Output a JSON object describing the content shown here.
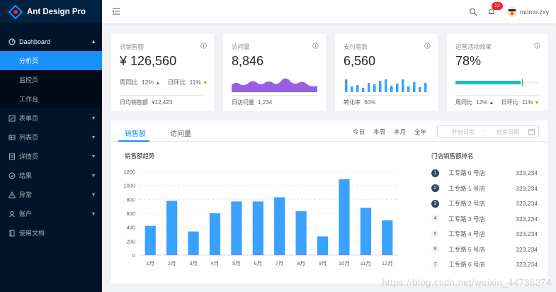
{
  "app": {
    "title": "Ant Design Pro"
  },
  "sidebar": {
    "items": [
      {
        "label": "Dashboard",
        "icon": "dashboard-icon",
        "open": true,
        "children": [
          {
            "label": "分析页",
            "selected": true
          },
          {
            "label": "监控页"
          },
          {
            "label": "工作台"
          }
        ]
      },
      {
        "label": "表单页",
        "icon": "form-icon"
      },
      {
        "label": "列表页",
        "icon": "table-icon"
      },
      {
        "label": "详情页",
        "icon": "profile-icon"
      },
      {
        "label": "结果",
        "icon": "check-circle-icon"
      },
      {
        "label": "异常",
        "icon": "warning-icon"
      },
      {
        "label": "账户",
        "icon": "user-icon"
      },
      {
        "label": "使用文档",
        "icon": "book-icon"
      }
    ]
  },
  "header": {
    "notice_count": "12",
    "user_name": "momo.zxy"
  },
  "stats": [
    {
      "label": "总销售额",
      "value": "¥ 126,560",
      "wow_label": "周同比",
      "wow": "12%",
      "dod_label": "日环比",
      "dod": "11%",
      "footer_label": "日均销售额",
      "footer_value": "¥12,423"
    },
    {
      "label": "访问量",
      "value": "8,846",
      "footer_label": "日访问量",
      "footer_value": "1,234"
    },
    {
      "label": "支付笔数",
      "value": "6,560",
      "footer_label": "转化率",
      "footer_value": "60%"
    },
    {
      "label": "运营活动效果",
      "value": "78%",
      "progress": 0.78,
      "wow_label": "周同比",
      "wow": "12%",
      "dod_label": "日环比",
      "dod": "11%"
    }
  ],
  "sales_panel": {
    "tabs": [
      "销售额",
      "访问量"
    ],
    "ranges": [
      "今日",
      "本周",
      "本月",
      "全年"
    ],
    "start_placeholder": "开始日期",
    "end_placeholder": "结束日期",
    "sep": "~",
    "ranking_title": "门店销售额排名",
    "ranking": [
      {
        "rank": "1",
        "name": "工专路 0 号店",
        "amount": "323,234"
      },
      {
        "rank": "2",
        "name": "工专路 1 号店",
        "amount": "323,234"
      },
      {
        "rank": "3",
        "name": "工专路 2 号店",
        "amount": "323,234"
      },
      {
        "rank": "4",
        "name": "工专路 3 号店",
        "amount": "323,234"
      },
      {
        "rank": "5",
        "name": "工专路 4 号店",
        "amount": "323,234"
      },
      {
        "rank": "6",
        "name": "工专路 5 号店",
        "amount": "323,234"
      },
      {
        "rank": "7",
        "name": "工专路 6 号店",
        "amount": "323,234"
      }
    ]
  },
  "chart_data": {
    "type": "bar",
    "title": "销售额趋势",
    "categories": [
      "1月",
      "2月",
      "3月",
      "4月",
      "5月",
      "6月",
      "7月",
      "8月",
      "9月",
      "10月",
      "11月",
      "12月"
    ],
    "values": [
      420,
      780,
      340,
      600,
      770,
      770,
      830,
      630,
      270,
      1090,
      680,
      500
    ],
    "ylim": [
      0,
      1200
    ],
    "yticks": [
      "0",
      "200",
      "400",
      "600",
      "800",
      "1000",
      "1200"
    ],
    "color": "#3ba1ff",
    "grid": true
  },
  "watermark": "https://blog.csdn.net/weixin_44736274",
  "colors": {
    "primary": "#1890ff",
    "sider": "#001529",
    "area": "#975fe4",
    "progress": "#13c2c2"
  }
}
